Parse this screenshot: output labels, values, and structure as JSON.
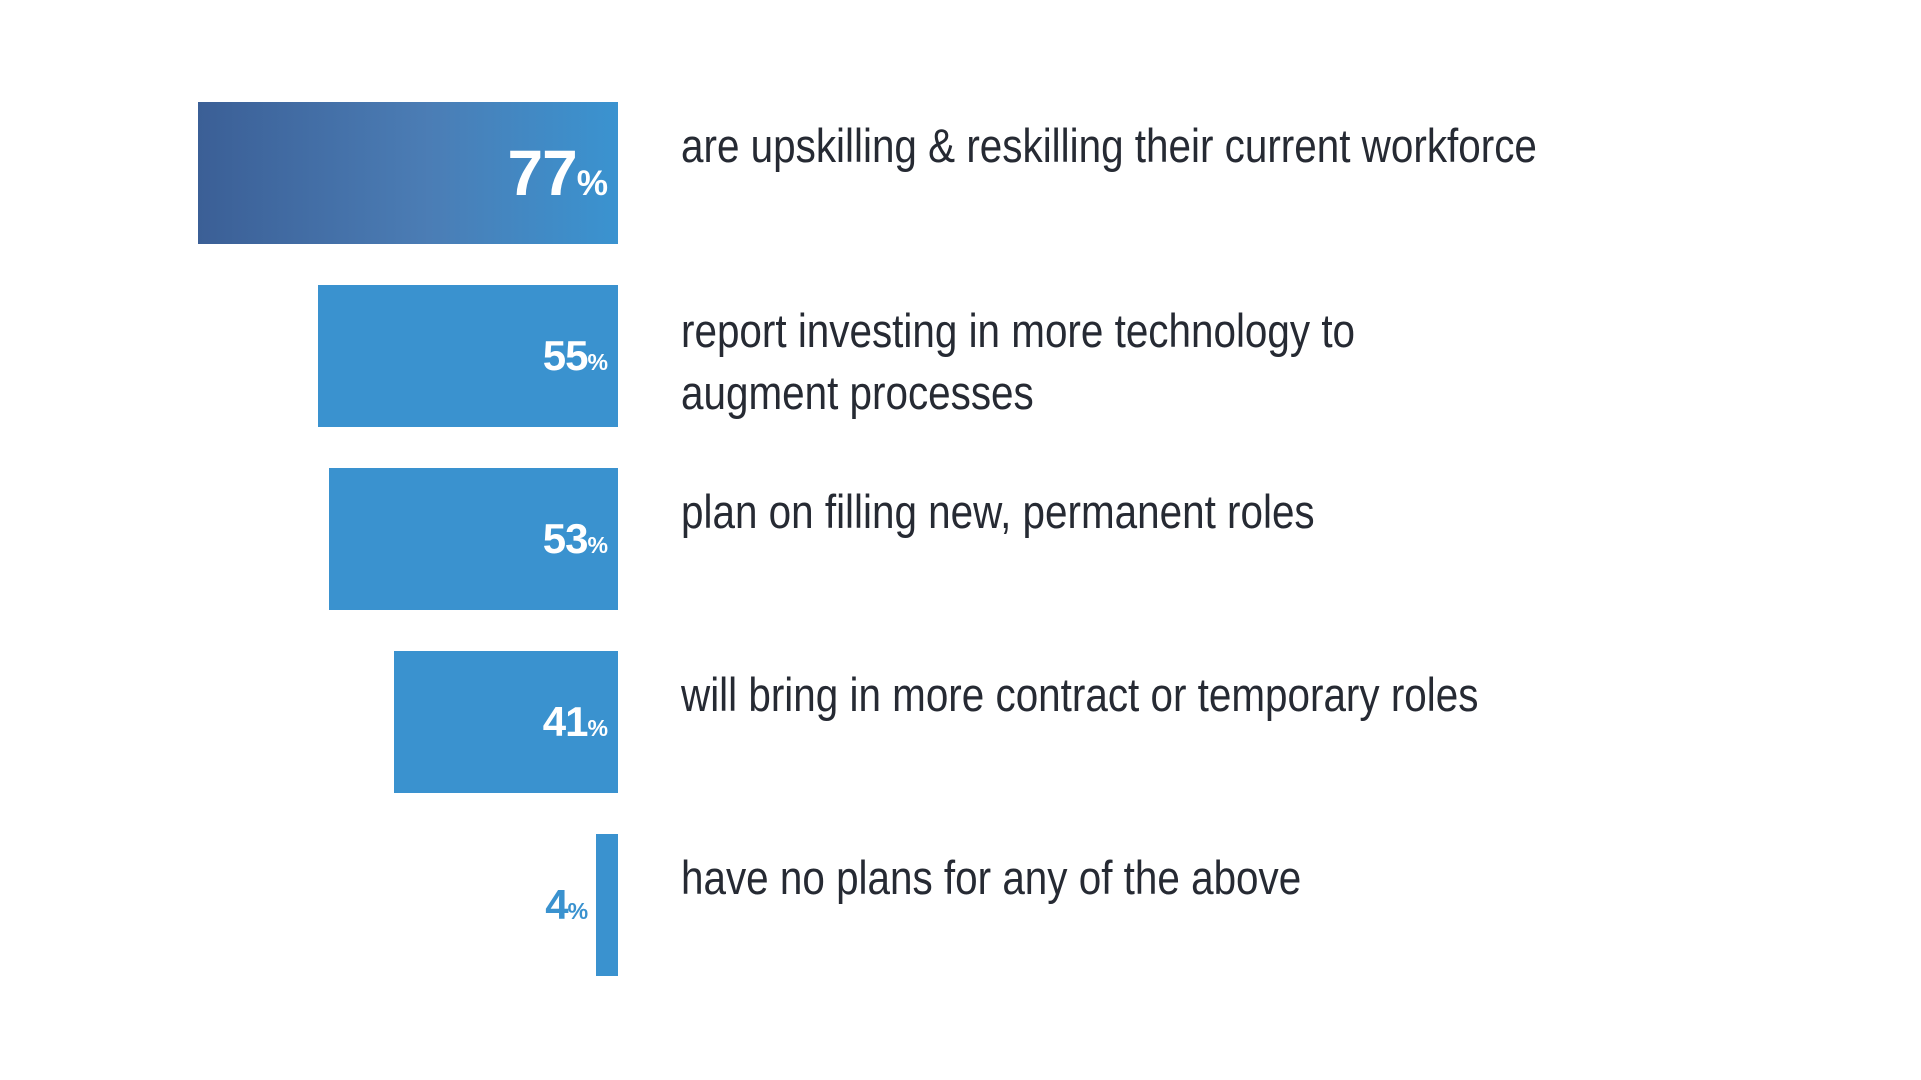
{
  "chart_data": {
    "type": "bar",
    "orientation": "horizontal",
    "title": "",
    "xlabel": "",
    "ylabel": "",
    "xlim": [
      0,
      77
    ],
    "grid": false,
    "legend": "none",
    "unit": "%",
    "categories": [
      [
        "are upskilling & reskilling their current workforce"
      ],
      [
        "report investing in more technology to",
        "augment processes"
      ],
      [
        "plan on filling new, permanent roles"
      ],
      [
        "will bring in more contract or temporary roles"
      ],
      [
        "have no plans for any of the above"
      ]
    ],
    "values": [
      77,
      55,
      53,
      41,
      4
    ],
    "value_labels": [
      "77",
      "55",
      "53",
      "41",
      "4"
    ],
    "colors": {
      "bar": "#3a92cf",
      "first_bar_gradient": [
        "#3b5f96",
        "#4b7db5",
        "#3a93d0"
      ],
      "value_text_inside": "#ffffff",
      "value_text_outside": "#3a92cf",
      "label_text": "#262a33"
    }
  }
}
